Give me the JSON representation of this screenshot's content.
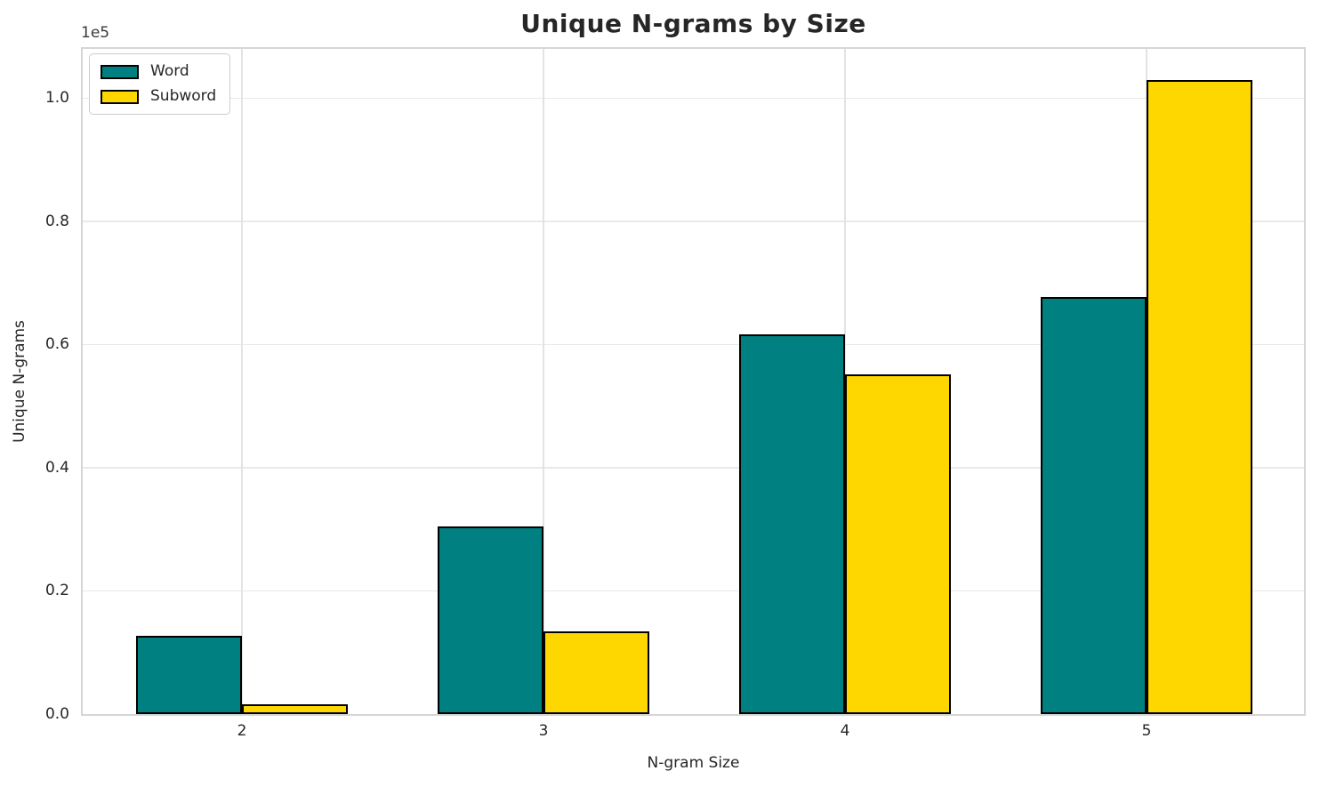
{
  "chart_data": {
    "type": "bar",
    "title": "Unique N-grams by Size",
    "xlabel": "N-gram Size",
    "ylabel": "Unique N-grams",
    "offset_text": "1e5",
    "categories": [
      "2",
      "3",
      "4",
      "5"
    ],
    "series": [
      {
        "name": "Word",
        "color": "#008080",
        "values": [
          12700,
          30500,
          61600,
          67700
        ]
      },
      {
        "name": "Subword",
        "color": "#FFD700",
        "values": [
          1650,
          13400,
          55100,
          102900
        ]
      }
    ],
    "bar_edge_color": "#000000",
    "y_ticks": [
      0.0,
      0.2,
      0.4,
      0.6,
      0.8,
      1.0
    ],
    "y_tick_labels": [
      "0.0",
      "0.2",
      "0.4",
      "0.6",
      "0.8",
      "1.0"
    ],
    "y_tick_scale": 100000,
    "ylim": [
      0,
      108000
    ],
    "grid": true,
    "legend_position": "upper left"
  }
}
